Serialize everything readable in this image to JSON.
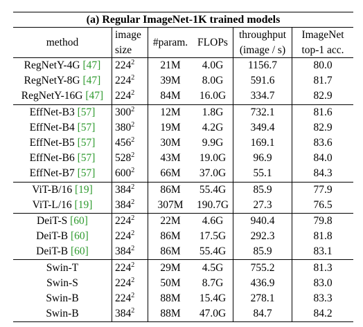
{
  "title": "(a) Regular ImageNet-1K trained models",
  "header": {
    "method": "method",
    "image_size": [
      "image",
      "size"
    ],
    "params": "#param.",
    "flops": "FLOPs",
    "throughput": [
      "throughput",
      "(image / s)"
    ],
    "accuracy": [
      "ImageNet",
      "top-1 acc."
    ]
  },
  "groups": [
    {
      "rows": [
        {
          "name": "RegNetY-4G",
          "cite": "[47]",
          "res": "224",
          "exp": "2",
          "params": "21M",
          "flops": "4.0G",
          "throughput": "1156.7",
          "acc": "80.0"
        },
        {
          "name": "RegNetY-8G",
          "cite": "[47]",
          "res": "224",
          "exp": "2",
          "params": "39M",
          "flops": "8.0G",
          "throughput": "591.6",
          "acc": "81.7"
        },
        {
          "name": "RegNetY-16G",
          "cite": "[47]",
          "res": "224",
          "exp": "2",
          "params": "84M",
          "flops": "16.0G",
          "throughput": "334.7",
          "acc": "82.9"
        }
      ]
    },
    {
      "rows": [
        {
          "name": "EffNet-B3",
          "cite": "[57]",
          "res": "300",
          "exp": "2",
          "params": "12M",
          "flops": "1.8G",
          "throughput": "732.1",
          "acc": "81.6"
        },
        {
          "name": "EffNet-B4",
          "cite": "[57]",
          "res": "380",
          "exp": "2",
          "params": "19M",
          "flops": "4.2G",
          "throughput": "349.4",
          "acc": "82.9"
        },
        {
          "name": "EffNet-B5",
          "cite": "[57]",
          "res": "456",
          "exp": "2",
          "params": "30M",
          "flops": "9.9G",
          "throughput": "169.1",
          "acc": "83.6"
        },
        {
          "name": "EffNet-B6",
          "cite": "[57]",
          "res": "528",
          "exp": "2",
          "params": "43M",
          "flops": "19.0G",
          "throughput": "96.9",
          "acc": "84.0"
        },
        {
          "name": "EffNet-B7",
          "cite": "[57]",
          "res": "600",
          "exp": "2",
          "params": "66M",
          "flops": "37.0G",
          "throughput": "55.1",
          "acc": "84.3"
        }
      ]
    },
    {
      "rows": [
        {
          "name": "ViT-B/16",
          "cite": "[19]",
          "res": "384",
          "exp": "2",
          "params": "86M",
          "flops": "55.4G",
          "throughput": "85.9",
          "acc": "77.9"
        },
        {
          "name": "ViT-L/16",
          "cite": "[19]",
          "res": "384",
          "exp": "2",
          "params": "307M",
          "flops": "190.7G",
          "throughput": "27.3",
          "acc": "76.5"
        }
      ]
    },
    {
      "rows": [
        {
          "name": "DeiT-S",
          "cite": "[60]",
          "res": "224",
          "exp": "2",
          "params": "22M",
          "flops": "4.6G",
          "throughput": "940.4",
          "acc": "79.8"
        },
        {
          "name": "DeiT-B",
          "cite": "[60]",
          "res": "224",
          "exp": "2",
          "params": "86M",
          "flops": "17.5G",
          "throughput": "292.3",
          "acc": "81.8"
        },
        {
          "name": "DeiT-B",
          "cite": "[60]",
          "res": "384",
          "exp": "2",
          "params": "86M",
          "flops": "55.4G",
          "throughput": "85.9",
          "acc": "83.1"
        }
      ]
    },
    {
      "rows": [
        {
          "name": "Swin-T",
          "cite": "",
          "res": "224",
          "exp": "2",
          "params": "29M",
          "flops": "4.5G",
          "throughput": "755.2",
          "acc": "81.3"
        },
        {
          "name": "Swin-S",
          "cite": "",
          "res": "224",
          "exp": "2",
          "params": "50M",
          "flops": "8.7G",
          "throughput": "436.9",
          "acc": "83.0"
        },
        {
          "name": "Swin-B",
          "cite": "",
          "res": "224",
          "exp": "2",
          "params": "88M",
          "flops": "15.4G",
          "throughput": "278.1",
          "acc": "83.3"
        },
        {
          "name": "Swin-B",
          "cite": "",
          "res": "384",
          "exp": "2",
          "params": "88M",
          "flops": "47.0G",
          "throughput": "84.7",
          "acc": "84.2"
        }
      ]
    }
  ]
}
